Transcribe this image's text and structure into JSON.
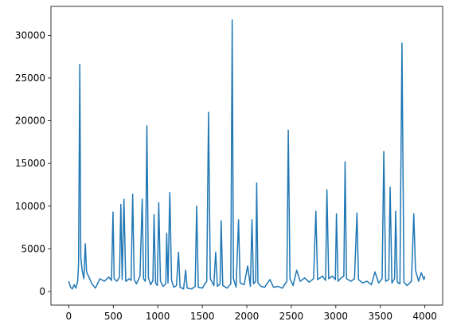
{
  "chart_data": {
    "type": "line",
    "x": [
      0,
      20,
      40,
      60,
      80,
      100,
      110,
      124,
      135,
      150,
      170,
      186,
      200,
      230,
      260,
      300,
      350,
      400,
      450,
      480,
      497,
      510,
      540,
      570,
      585,
      600,
      620,
      640,
      680,
      700,
      718,
      735,
      760,
      800,
      825,
      840,
      860,
      878,
      895,
      920,
      945,
      958,
      975,
      995,
      1011,
      1030,
      1060,
      1090,
      1100,
      1115,
      1135,
      1155,
      1180,
      1210,
      1233,
      1250,
      1290,
      1313,
      1330,
      1380,
      1420,
      1437,
      1455,
      1500,
      1550,
      1570,
      1590,
      1630,
      1650,
      1670,
      1700,
      1712,
      1730,
      1780,
      1820,
      1836,
      1850,
      1880,
      1907,
      1925,
      1970,
      2010,
      2040,
      2058,
      2075,
      2100,
      2111,
      2125,
      2160,
      2200,
      2260,
      2300,
      2350,
      2400,
      2450,
      2466,
      2485,
      2520,
      2560,
      2600,
      2650,
      2700,
      2750,
      2776,
      2795,
      2850,
      2885,
      2900,
      2920,
      2960,
      2995,
      3007,
      3025,
      3060,
      3090,
      3104,
      3120,
      3170,
      3210,
      3237,
      3255,
      3300,
      3350,
      3400,
      3440,
      3480,
      3520,
      3539,
      3560,
      3595,
      3610,
      3630,
      3660,
      3672,
      3690,
      3720,
      3743,
      3765,
      3800,
      3850,
      3876,
      3895,
      3930,
      3960,
      3990,
      4000
    ],
    "series": [
      {
        "color": "#1f77b4",
        "values": [
          1200,
          500,
          300,
          800,
          400,
          1200,
          3200,
          26600,
          4000,
          2500,
          1500,
          5600,
          2300,
          1600,
          900,
          400,
          1500,
          1200,
          1700,
          1300,
          9300,
          1500,
          1200,
          1700,
          10200,
          1400,
          10800,
          1200,
          1500,
          1300,
          11400,
          1400,
          900,
          1800,
          10800,
          1500,
          1200,
          19400,
          1600,
          800,
          1300,
          9000,
          1000,
          700,
          10400,
          1200,
          600,
          900,
          6800,
          1000,
          11600,
          1300,
          500,
          700,
          4600,
          500,
          300,
          2500,
          400,
          300,
          600,
          10000,
          500,
          400,
          1200,
          21000,
          1500,
          700,
          4600,
          600,
          900,
          8300,
          700,
          400,
          900,
          31800,
          1500,
          500,
          8400,
          1000,
          800,
          3000,
          600,
          8400,
          900,
          1200,
          12700,
          1000,
          600,
          500,
          1400,
          500,
          600,
          400,
          1200,
          18900,
          1500,
          700,
          2500,
          1200,
          1600,
          1100,
          1500,
          9400,
          1400,
          1800,
          1300,
          11900,
          1500,
          1800,
          1400,
          9100,
          1200,
          1600,
          1800,
          15200,
          1500,
          1200,
          1500,
          9200,
          1400,
          1000,
          1200,
          800,
          2300,
          1000,
          1500,
          16400,
          1200,
          1400,
          12200,
          1000,
          1500,
          9400,
          1100,
          900,
          29100,
          1100,
          700,
          1200,
          9100,
          2500,
          1200,
          2200,
          1400,
          1800
        ]
      }
    ],
    "xlim": [
      -200,
      4200
    ],
    "xticks": [
      0,
      500,
      1000,
      1500,
      2000,
      2500,
      3000,
      3500,
      4000
    ],
    "ylim": [
      -1590,
      33390
    ],
    "yticks": [
      0,
      5000,
      10000,
      15000,
      20000,
      25000,
      30000
    ]
  }
}
